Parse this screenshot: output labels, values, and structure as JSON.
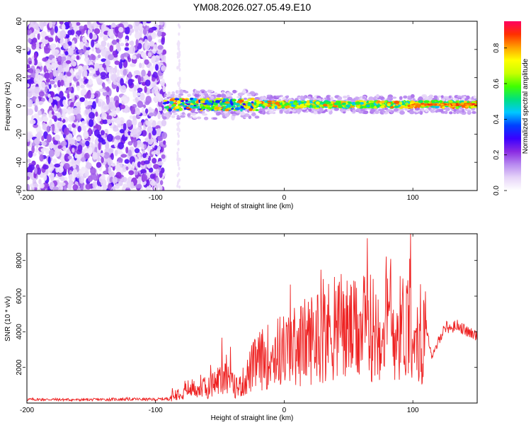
{
  "figure": {
    "title": "YM08.2026.027.05.49.E10"
  },
  "chart_data": [
    {
      "type": "heatmap",
      "xlabel": "Height of straight line (km)",
      "ylabel": "Frequency (Hz)",
      "xlim": [
        -200,
        150
      ],
      "ylim": [
        -60,
        60
      ],
      "x_ticks": [
        "-200",
        "-100",
        "0",
        "100"
      ],
      "y_ticks": [
        "-60",
        "-40",
        "-20",
        "0",
        "20",
        "40",
        "60"
      ],
      "colorbar": {
        "label": "Normalized spectral amplitude",
        "range": [
          0,
          0.95
        ],
        "ticks": [
          "0.0",
          "0.2",
          "0.4",
          "0.6",
          "0.8"
        ],
        "colormap": [
          "#ffffff",
          "#e6d4f8",
          "#b88af0",
          "#8a2be2",
          "#3a00ff",
          "#0040ff",
          "#00c8ff",
          "#00e080",
          "#40ff00",
          "#c8ff00",
          "#ffff00",
          "#ffa000",
          "#ff3000",
          "#ff0060"
        ]
      },
      "regions": [
        {
          "label": "broadband noise",
          "x": [
            -200,
            -93
          ],
          "amplitude": 0.1
        },
        {
          "label": "signal",
          "x": [
            -93,
            150
          ],
          "center_frequency_hz": 1,
          "peak_amplitude": 0.9
        }
      ]
    },
    {
      "type": "line",
      "xlabel": "Height of straight line (km)",
      "ylabel": "SNR (10 * v/v)",
      "xlim": [
        -200,
        150
      ],
      "ylim": [
        0,
        9500
      ],
      "x_ticks": [
        "-200",
        "-100",
        "0",
        "100"
      ],
      "y_ticks": [
        "2000",
        "4000",
        "6000",
        "8000"
      ],
      "color": "#ee2222",
      "series": [
        {
          "x": [
            -200,
            -180,
            -160,
            -140,
            -120,
            -100,
            -90,
            -85,
            -80,
            -70,
            -60,
            -50,
            -45,
            -40,
            -35,
            -30,
            -25,
            -20,
            -15,
            -10,
            -5,
            0,
            5,
            10,
            15,
            20,
            25,
            30,
            35,
            40,
            45,
            50,
            55,
            60,
            65,
            70,
            75,
            80,
            85,
            90,
            95,
            98,
            100,
            105,
            110,
            115,
            120,
            125,
            130,
            135,
            140,
            145,
            150
          ],
          "y": [
            200,
            200,
            180,
            200,
            220,
            200,
            250,
            500,
            800,
            900,
            900,
            1500,
            2000,
            1100,
            1000,
            1500,
            2200,
            2600,
            2800,
            3000,
            3200,
            3300,
            3400,
            3600,
            3800,
            4000,
            4200,
            4400,
            4500,
            4600,
            4600,
            4600,
            4400,
            4600,
            4700,
            4700,
            4800,
            4700,
            4600,
            4700,
            5000,
            6000,
            5000,
            3000,
            4500,
            2500,
            3500,
            4300,
            4200,
            4400,
            4100,
            3900,
            3800
          ]
        }
      ]
    }
  ]
}
